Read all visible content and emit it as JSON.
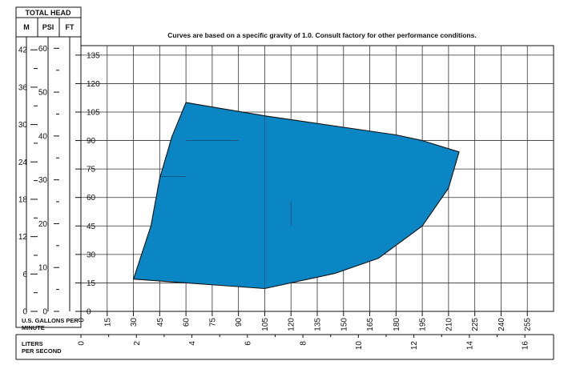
{
  "chart_data": {
    "type": "area",
    "title": "Curves are based on a specific gravity of 1.0. Consult factory for other performance conditions.",
    "head_header": "TOTAL HEAD",
    "head_units": {
      "m": "M",
      "psi": "PSI",
      "ft": "FT"
    },
    "x_label_gpm": "U.S. GALLONS PER MINUTE",
    "x_label_lps": "LITERS PER SECOND",
    "x_unit": "U.S. GPM",
    "y_unit": "FT",
    "xlim": [
      0,
      270
    ],
    "ylim": [
      0,
      140
    ],
    "grid": true,
    "x_ticks_gpm": [
      "0",
      "15",
      "30",
      "45",
      "60",
      "75",
      "90",
      "105",
      "120",
      "135",
      "150",
      "165",
      "180",
      "195",
      "210",
      "225",
      "240",
      "255"
    ],
    "y_ticks_ft": [
      "0",
      "15",
      "30",
      "45",
      "60",
      "75",
      "90",
      "105",
      "120",
      "135"
    ],
    "y_ticks_psi": [
      "0",
      "10",
      "20",
      "30",
      "40",
      "50",
      "60"
    ],
    "y_ticks_m": [
      "0",
      "6",
      "12",
      "18",
      "24",
      "30",
      "36",
      "42"
    ],
    "x_ticks_lps": [
      "0",
      "2",
      "4",
      "6",
      "8",
      "10",
      "12",
      "14",
      "16"
    ],
    "region": {
      "fill": "#0b86c4",
      "boundary": [
        [
          30,
          17
        ],
        [
          40,
          45
        ],
        [
          45,
          70
        ],
        [
          52,
          92
        ],
        [
          60,
          110
        ],
        [
          105,
          103
        ],
        [
          150,
          97
        ],
        [
          180,
          93
        ],
        [
          195,
          90
        ],
        [
          216,
          84
        ],
        [
          210,
          65
        ],
        [
          195,
          45
        ],
        [
          170,
          28
        ],
        [
          145,
          20
        ],
        [
          105,
          12
        ],
        [
          30,
          17
        ]
      ],
      "inner_lines": [
        [
          [
            60,
            90
          ],
          [
            90,
            90
          ]
        ],
        [
          [
            45,
            71
          ],
          [
            60,
            71
          ]
        ],
        [
          [
            120,
            58
          ],
          [
            120,
            45
          ]
        ],
        [
          [
            105,
            103
          ],
          [
            105,
            12
          ]
        ]
      ]
    }
  }
}
